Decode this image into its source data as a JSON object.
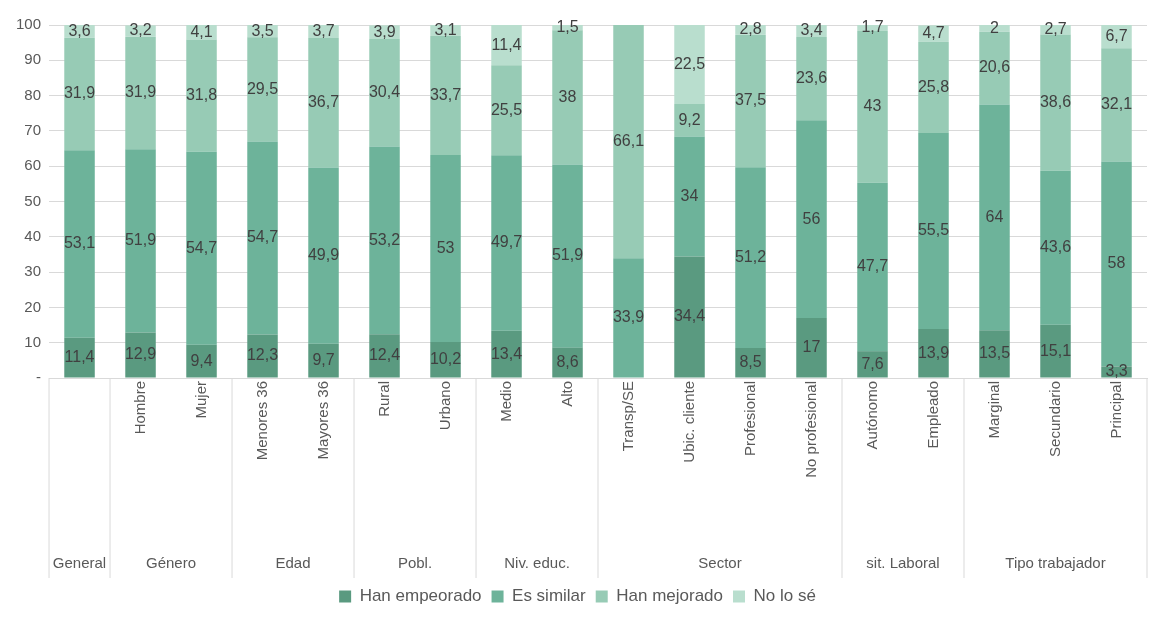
{
  "chart_data": {
    "type": "bar",
    "stacked": true,
    "categories": [
      null,
      "Hombre",
      "Mujer",
      "Menores 36",
      "Mayores 36",
      "Rural",
      "Urbano",
      "Medio",
      "Alto",
      "Transp/SE",
      "Ubic. cliente",
      "Profesional",
      "No profesional",
      "Autónomo",
      "Empleado",
      "Marginal",
      "Secundario",
      "Principal"
    ],
    "series": [
      {
        "name": "Han empeorado",
        "color": "#5a9a80",
        "values": [
          11.4,
          12.9,
          9.4,
          12.3,
          9.7,
          12.4,
          10.2,
          13.4,
          8.6,
          null,
          34.4,
          8.5,
          17,
          7.6,
          13.9,
          13.5,
          15.1,
          3.3
        ],
        "value_labels": [
          "11,4",
          "12,9",
          "9,4",
          "12,3",
          "9,7",
          "12,4",
          "10,2",
          "13,4",
          "8,6",
          null,
          "34,4",
          "8,5",
          "17",
          "7,6",
          "13,9",
          "13,5",
          "15,1",
          "3,3"
        ]
      },
      {
        "name": "Es similar",
        "color": "#6db39a",
        "values": [
          53.1,
          51.9,
          54.7,
          54.7,
          49.9,
          53.2,
          53,
          49.7,
          51.9,
          33.9,
          34,
          51.2,
          56,
          47.7,
          55.5,
          64,
          43.6,
          58
        ],
        "value_labels": [
          "53,1",
          "51,9",
          "54,7",
          "54,7",
          "49,9",
          "53,2",
          "53",
          "49,7",
          "51,9",
          "33,9",
          "34",
          "51,2",
          "56",
          "47,7",
          "55,5",
          "64",
          "43,6",
          "58"
        ]
      },
      {
        "name": "Han mejorado",
        "color": "#97cbb5",
        "values": [
          31.9,
          31.9,
          31.8,
          29.5,
          36.7,
          30.4,
          33.7,
          25.5,
          38,
          66.1,
          9.2,
          37.5,
          23.6,
          43,
          25.8,
          20.6,
          38.6,
          32.1
        ],
        "value_labels": [
          "31,9",
          "31,9",
          "31,8",
          "29,5",
          "36,7",
          "30,4",
          "33,7",
          "25,5",
          "38",
          "66,1",
          "9,2",
          "37,5",
          "23,6",
          "43",
          "25,8",
          "20,6",
          "38,6",
          "32,1"
        ]
      },
      {
        "name": "No lo sé",
        "color": "#b9dece",
        "values": [
          3.6,
          3.2,
          4.1,
          3.5,
          3.7,
          3.9,
          3.1,
          11.4,
          1.5,
          null,
          22.5,
          2.8,
          3.4,
          1.7,
          4.7,
          2,
          2.7,
          6.7
        ],
        "value_labels": [
          "3,6",
          "3,2",
          "4,1",
          "3,5",
          "3,7",
          "3,9",
          "3,1",
          "11,4",
          "1,5",
          null,
          "22,5",
          "2,8",
          "3,4",
          "1,7",
          "4,7",
          "2",
          "2,7",
          "6,7"
        ]
      }
    ],
    "ylim": [
      0,
      100
    ],
    "yticks": [
      {
        "value": 0,
        "label": "-"
      },
      10,
      20,
      30,
      40,
      50,
      60,
      70,
      80,
      90,
      100
    ],
    "grid": "y",
    "legend": "bottom",
    "annotations": [
      "General",
      "Género",
      "Edad",
      "Pobl.",
      "Niv. educ.",
      "Sector",
      "sit. Laboral",
      "Tipo trabajador"
    ]
  }
}
